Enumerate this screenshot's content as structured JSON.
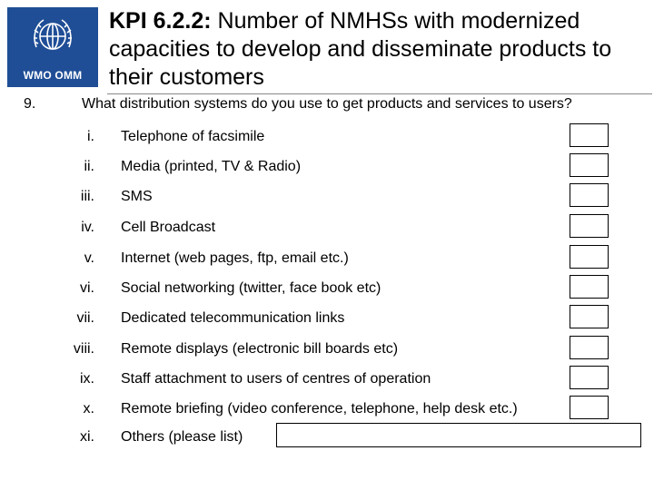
{
  "logo": {
    "text": "WMO OMM"
  },
  "header": {
    "kpi": "KPI 6.2.2:",
    "title_rest": " Number of NMHSs with modernized capacities to develop and disseminate products to their customers"
  },
  "question": {
    "number": "9.",
    "text": "What distribution systems do you use to get products and services to users?"
  },
  "items": [
    {
      "roman": "i.",
      "label": "Telephone of facsimile"
    },
    {
      "roman": "ii.",
      "label": "Media (printed, TV & Radio)"
    },
    {
      "roman": "iii.",
      "label": "SMS"
    },
    {
      "roman": "iv.",
      "label": "Cell Broadcast"
    },
    {
      "roman": "v.",
      "label": "Internet (web pages, ftp, email etc.)"
    },
    {
      "roman": "vi.",
      "label": "Social networking (twitter, face book etc)"
    },
    {
      "roman": "vii.",
      "label": "Dedicated telecommunication links"
    },
    {
      "roman": "viii.",
      "label": "Remote displays (electronic bill boards etc)"
    },
    {
      "roman": "ix.",
      "label": "Staff attachment to users of centres of operation"
    },
    {
      "roman": "x.",
      "label": "Remote briefing (video conference, telephone, help desk etc.)"
    },
    {
      "roman": "xi.",
      "label": "Others (please list)"
    }
  ]
}
